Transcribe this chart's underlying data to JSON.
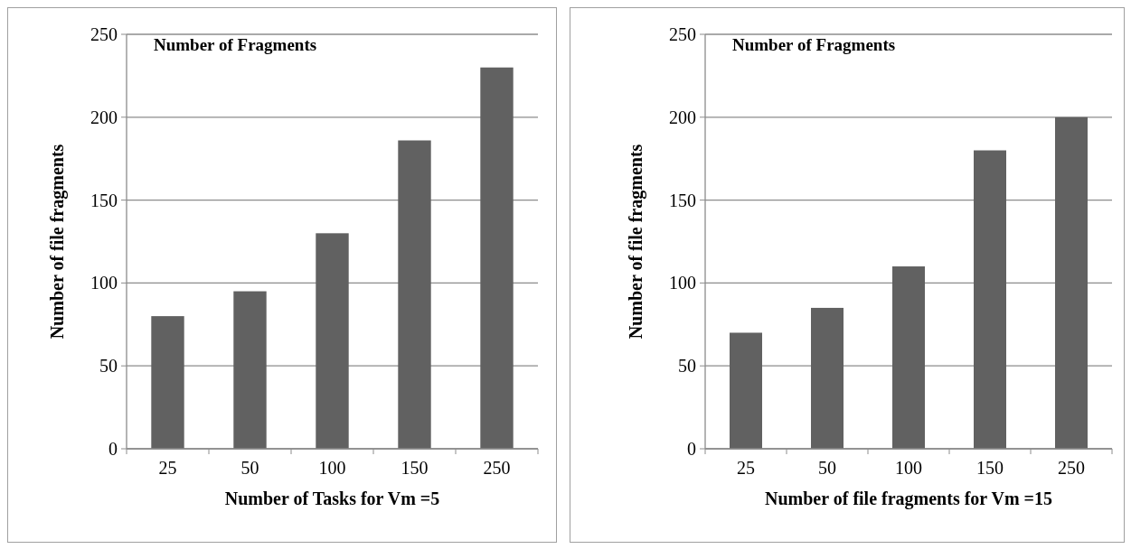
{
  "chart_data": [
    {
      "type": "bar",
      "title": "Number of Fragments",
      "xlabel": "Number of Tasks for Vm =5",
      "ylabel": "Number of file fragments",
      "categories": [
        "25",
        "50",
        "100",
        "150",
        "250"
      ],
      "values": [
        80,
        95,
        130,
        186,
        230
      ],
      "color": "#616161",
      "ylim": [
        0,
        250
      ],
      "yticks": [
        0,
        50,
        100,
        150,
        200,
        250
      ],
      "grid": "y"
    },
    {
      "type": "bar",
      "title": "Number of Fragments",
      "xlabel": "Number of file fragments for Vm =15",
      "ylabel": "Number of file fragments",
      "categories": [
        "25",
        "50",
        "100",
        "150",
        "250"
      ],
      "values": [
        70,
        85,
        110,
        180,
        200
      ],
      "color": "#616161",
      "ylim": [
        0,
        250
      ],
      "yticks": [
        0,
        50,
        100,
        150,
        200,
        250
      ],
      "grid": "y"
    }
  ]
}
